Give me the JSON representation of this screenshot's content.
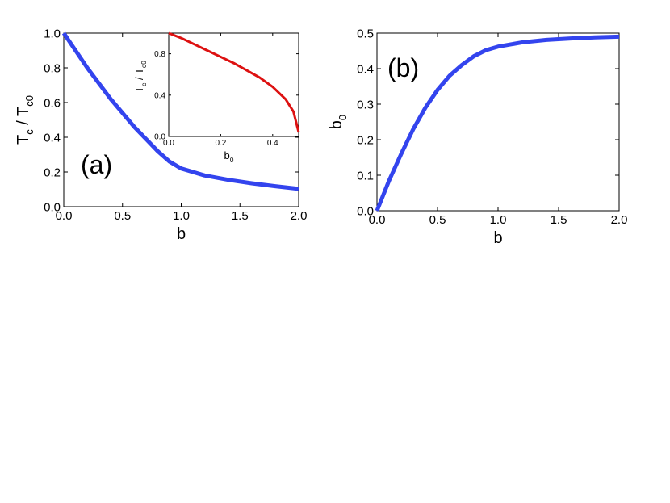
{
  "chart_data": [
    {
      "type": "line",
      "annotation": "(a)",
      "xlabel": [
        "b"
      ],
      "ylabel": [
        "T",
        "c",
        " / T",
        "c0"
      ],
      "x": [
        0,
        0.1,
        0.2,
        0.3,
        0.4,
        0.5,
        0.6,
        0.7,
        0.8,
        0.9,
        1.0,
        1.2,
        1.4,
        1.6,
        1.8,
        2.0
      ],
      "series": [
        {
          "color": "#3344ee",
          "values": [
            1.0,
            0.9,
            0.8,
            0.71,
            0.62,
            0.54,
            0.46,
            0.39,
            0.32,
            0.26,
            0.22,
            0.18,
            0.155,
            0.135,
            0.118,
            0.103
          ]
        }
      ],
      "xlim": [
        0,
        2
      ],
      "ylim": [
        0,
        1
      ],
      "xticks": [
        {
          "value": 0,
          "label": "0.0"
        },
        {
          "value": 0.5,
          "label": "0.5"
        },
        {
          "value": 1,
          "label": "1.0"
        },
        {
          "value": 1.5,
          "label": "1.5"
        },
        {
          "value": 2,
          "label": "2.0"
        }
      ],
      "yticks": [
        {
          "value": 0,
          "label": "0.0"
        },
        {
          "value": 0.2,
          "label": "0.2"
        },
        {
          "value": 0.4,
          "label": "0.4"
        },
        {
          "value": 0.6,
          "label": "0.6"
        },
        {
          "value": 0.8,
          "label": "0.8"
        },
        {
          "value": 1,
          "label": "1.0"
        }
      ]
    },
    {
      "type": "line",
      "xlabel": [
        "b",
        "0"
      ],
      "ylabel": [
        "T",
        "c",
        " / T",
        "c0"
      ],
      "x": [
        0,
        0.05,
        0.1,
        0.15,
        0.2,
        0.25,
        0.3,
        0.35,
        0.4,
        0.45,
        0.48,
        0.5
      ],
      "series": [
        {
          "color": "#dd1111",
          "values": [
            1.0,
            0.95,
            0.89,
            0.83,
            0.77,
            0.71,
            0.64,
            0.57,
            0.48,
            0.36,
            0.24,
            0.04
          ]
        }
      ],
      "xlim": [
        0,
        0.5
      ],
      "ylim": [
        0,
        1
      ],
      "xticks": [
        {
          "value": 0,
          "label": "0.0"
        },
        {
          "value": 0.2,
          "label": "0.2"
        },
        {
          "value": 0.4,
          "label": "0.4"
        }
      ],
      "yticks": [
        {
          "value": 0,
          "label": "0.0"
        },
        {
          "value": 0.4,
          "label": "0.4"
        },
        {
          "value": 0.8,
          "label": "0.8"
        }
      ]
    },
    {
      "type": "line",
      "annotation": "(b)",
      "xlabel": [
        "b"
      ],
      "ylabel": [
        "b",
        "0"
      ],
      "x": [
        0,
        0.1,
        0.2,
        0.3,
        0.4,
        0.5,
        0.6,
        0.7,
        0.8,
        0.9,
        1.0,
        1.2,
        1.4,
        1.6,
        1.8,
        2.0
      ],
      "series": [
        {
          "color": "#3344ee",
          "values": [
            0,
            0.085,
            0.16,
            0.23,
            0.29,
            0.34,
            0.38,
            0.41,
            0.435,
            0.452,
            0.462,
            0.474,
            0.481,
            0.485,
            0.488,
            0.49
          ]
        }
      ],
      "xlim": [
        0,
        2
      ],
      "ylim": [
        0,
        0.5
      ],
      "xticks": [
        {
          "value": 0,
          "label": "0.0"
        },
        {
          "value": 0.5,
          "label": "0.5"
        },
        {
          "value": 1,
          "label": "1.0"
        },
        {
          "value": 1.5,
          "label": "1.5"
        },
        {
          "value": 2,
          "label": "2.0"
        }
      ],
      "yticks": [
        {
          "value": 0,
          "label": "0.0"
        },
        {
          "value": 0.1,
          "label": "0.1"
        },
        {
          "value": 0.2,
          "label": "0.2"
        },
        {
          "value": 0.3,
          "label": "0.3"
        },
        {
          "value": 0.4,
          "label": "0.4"
        },
        {
          "value": 0.5,
          "label": "0.5"
        }
      ]
    }
  ]
}
